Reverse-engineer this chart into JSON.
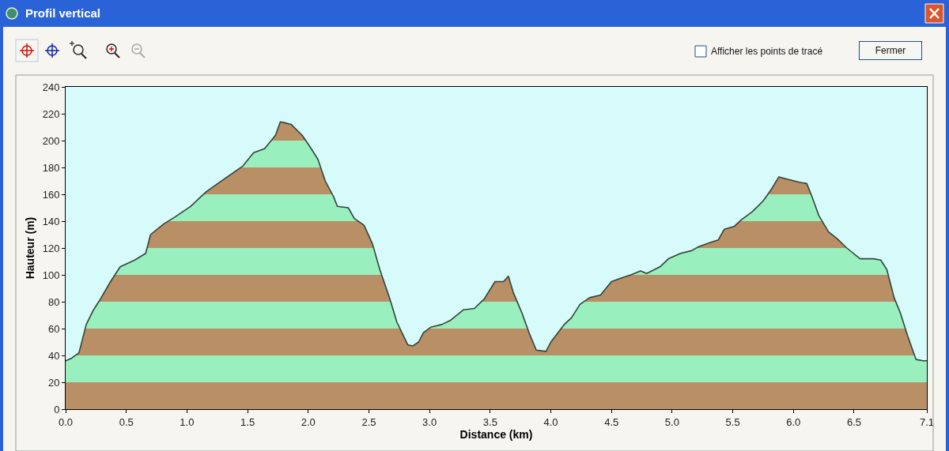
{
  "chart_data": {
    "type": "area",
    "title": "Profil vertical",
    "xlabel": "Distance (km)",
    "ylabel": "Hauteur (m)",
    "annotations": [
      "Afficher les points de tracé",
      "Fermer"
    ],
    "x": [
      0.0,
      0.05,
      0.11,
      0.17,
      0.23,
      0.28,
      0.37,
      0.45,
      0.57,
      0.66,
      0.7,
      0.81,
      0.9,
      1.03,
      1.16,
      1.27,
      1.38,
      1.46,
      1.55,
      1.64,
      1.73,
      1.77,
      1.82,
      1.86,
      1.95,
      2.01,
      2.08,
      2.14,
      2.21,
      2.24,
      2.33,
      2.38,
      2.46,
      2.53,
      2.59,
      2.67,
      2.73,
      2.82,
      2.86,
      2.91,
      2.95,
      3.01,
      3.1,
      3.17,
      3.28,
      3.37,
      3.45,
      3.54,
      3.61,
      3.65,
      3.69,
      3.76,
      3.82,
      3.88,
      3.96,
      4.0,
      4.11,
      4.17,
      4.24,
      4.32,
      4.41,
      4.5,
      4.59,
      4.66,
      4.74,
      4.79,
      4.9,
      4.97,
      5.07,
      5.16,
      5.22,
      5.31,
      5.38,
      5.43,
      5.51,
      5.57,
      5.66,
      5.75,
      5.82,
      5.88,
      5.96,
      6.05,
      6.11,
      6.15,
      6.21,
      6.29,
      6.36,
      6.44,
      6.55,
      6.66,
      6.72,
      6.77,
      6.83,
      6.88,
      6.94,
      7.01,
      7.07,
      7.1
    ],
    "series": [
      {
        "color": "#33433c",
        "values": [
          36,
          38,
          42,
          63,
          74,
          81,
          95,
          106,
          111,
          116,
          130,
          138,
          143,
          151,
          162,
          169,
          176,
          181,
          191,
          194,
          204,
          214,
          213,
          212,
          204,
          196,
          186,
          170,
          158,
          151,
          150,
          142,
          137,
          123,
          104,
          83,
          65,
          48,
          47,
          50,
          57,
          61,
          63,
          66,
          74,
          75,
          82,
          95,
          95,
          99,
          87,
          72,
          57,
          44,
          43,
          50,
          63,
          68,
          78,
          83,
          85,
          95,
          98,
          100,
          103,
          101,
          106,
          112,
          116,
          118,
          121,
          124,
          126,
          134,
          136,
          141,
          147,
          155,
          164,
          173,
          171,
          169,
          168,
          159,
          144,
          132,
          127,
          120,
          112,
          112,
          111,
          104,
          83,
          72,
          55,
          37,
          36,
          36
        ]
      }
    ],
    "xlim": [
      0,
      7.1
    ],
    "xticks": [
      {
        "value": 0,
        "label": "0.0"
      },
      0.5,
      {
        "value": 1,
        "label": "1.0"
      },
      1.5,
      {
        "value": 2,
        "label": "2.0"
      },
      2.5,
      {
        "value": 3,
        "label": "3.0"
      },
      3.5,
      {
        "value": 4,
        "label": "4.0"
      },
      4.5,
      {
        "value": 5,
        "label": "5.0"
      },
      5.5,
      {
        "value": 6,
        "label": "6.0"
      },
      6.5,
      7.1
    ],
    "ylim": [
      0,
      240
    ],
    "yticks": [
      0,
      20,
      40,
      60,
      80,
      100,
      120,
      140,
      160,
      180,
      200,
      220,
      240
    ]
  }
}
